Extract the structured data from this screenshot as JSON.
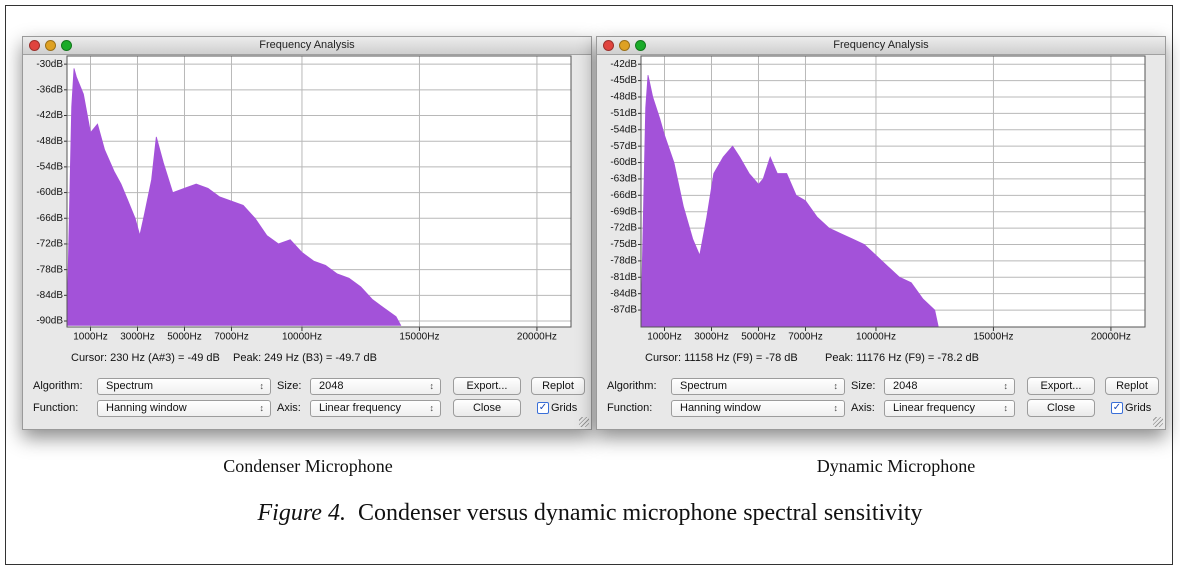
{
  "chart_data": [
    {
      "type": "area",
      "color": "#a352d9",
      "x": [
        0,
        200,
        300,
        400,
        700,
        1000,
        1300,
        1600,
        2000,
        2300,
        2600,
        2900,
        3100,
        3300,
        3600,
        3800,
        4100,
        4500,
        5000,
        5500,
        6000,
        6500,
        7000,
        7500,
        8000,
        8500,
        9000,
        9500,
        10000,
        10500,
        11000,
        11500,
        12000,
        12500,
        13000,
        13500,
        14000,
        14200
      ],
      "values": [
        -91,
        -40,
        -31,
        -33,
        -37,
        -46,
        -44,
        -50,
        -55,
        -58,
        -62,
        -66,
        -70,
        -65,
        -57,
        -47,
        -53,
        -60,
        -59,
        -58,
        -59,
        -61,
        -62,
        -63,
        -66,
        -70,
        -72,
        -71,
        -74,
        -76,
        -77,
        -79,
        -80,
        -82,
        -85,
        -87,
        -89,
        -91
      ],
      "xlim": [
        0,
        21450
      ],
      "ylim": [
        -91.4,
        -28.1
      ],
      "xticks": [
        {
          "value": 1000,
          "label": "1000Hz"
        },
        {
          "value": 3000,
          "label": "3000Hz"
        },
        {
          "value": 5000,
          "label": "5000Hz"
        },
        {
          "value": 7000,
          "label": "7000Hz"
        },
        {
          "value": 10000,
          "label": "10000Hz"
        },
        {
          "value": 15000,
          "label": "15000Hz"
        },
        {
          "value": 20000,
          "label": "20000Hz"
        }
      ],
      "yticks": [
        {
          "value": -30,
          "label": "-30dB"
        },
        {
          "value": -36,
          "label": "-36dB"
        },
        {
          "value": -42,
          "label": "-42dB"
        },
        {
          "value": -48,
          "label": "-48dB"
        },
        {
          "value": -54,
          "label": "-54dB"
        },
        {
          "value": -60,
          "label": "-60dB"
        },
        {
          "value": -66,
          "label": "-66dB"
        },
        {
          "value": -72,
          "label": "-72dB"
        },
        {
          "value": -78,
          "label": "-78dB"
        },
        {
          "value": -84,
          "label": "-84dB"
        },
        {
          "value": -90,
          "label": "-90dB"
        }
      ],
      "grid": true
    },
    {
      "type": "area",
      "color": "#a352d9",
      "x": [
        0,
        200,
        300,
        500,
        800,
        1000,
        1400,
        1800,
        2200,
        2500,
        2800,
        3100,
        3500,
        3900,
        4200,
        4600,
        5000,
        5200,
        5500,
        5800,
        6200,
        6600,
        7000,
        7500,
        8000,
        8500,
        9000,
        9500,
        10000,
        10500,
        11000,
        11500,
        12000,
        12500,
        12650
      ],
      "values": [
        -90,
        -50,
        -44,
        -48,
        -52,
        -55,
        -60,
        -68,
        -74,
        -77,
        -70,
        -62,
        -59,
        -57,
        -59,
        -62,
        -64,
        -63,
        -59,
        -62,
        -62,
        -66,
        -67,
        -70,
        -72,
        -73,
        -74,
        -75,
        -77,
        -79,
        -81,
        -82,
        -85,
        -87,
        -90
      ],
      "xlim": [
        0,
        21450
      ],
      "ylim": [
        -90.1,
        -40.5
      ],
      "xticks": [
        {
          "value": 1000,
          "label": "1000Hz"
        },
        {
          "value": 3000,
          "label": "3000Hz"
        },
        {
          "value": 5000,
          "label": "5000Hz"
        },
        {
          "value": 7000,
          "label": "7000Hz"
        },
        {
          "value": 10000,
          "label": "10000Hz"
        },
        {
          "value": 15000,
          "label": "15000Hz"
        },
        {
          "value": 20000,
          "label": "20000Hz"
        }
      ],
      "yticks": [
        {
          "value": -42,
          "label": "-42dB"
        },
        {
          "value": -45,
          "label": "-45dB"
        },
        {
          "value": -48,
          "label": "-48dB"
        },
        {
          "value": -51,
          "label": "-51dB"
        },
        {
          "value": -54,
          "label": "-54dB"
        },
        {
          "value": -57,
          "label": "-57dB"
        },
        {
          "value": -60,
          "label": "-60dB"
        },
        {
          "value": -63,
          "label": "-63dB"
        },
        {
          "value": -66,
          "label": "-66dB"
        },
        {
          "value": -69,
          "label": "-69dB"
        },
        {
          "value": -72,
          "label": "-72dB"
        },
        {
          "value": -75,
          "label": "-75dB"
        },
        {
          "value": -78,
          "label": "-78dB"
        },
        {
          "value": -81,
          "label": "-81dB"
        },
        {
          "value": -84,
          "label": "-84dB"
        },
        {
          "value": -87,
          "label": "-87dB"
        }
      ],
      "grid": true
    }
  ],
  "windows": [
    {
      "title": "Frequency Analysis",
      "cursor": "Cursor: 230 Hz (A#3) = -49 dB",
      "peak": "Peak: 249 Hz (B3) = -49.7 dB",
      "algorithm_label": "Algorithm:",
      "algorithm": "Spectrum",
      "size_label": "Size:",
      "size": "2048",
      "export": "Export...",
      "replot": "Replot",
      "function_label": "Function:",
      "function": "Hanning window",
      "axis_label": "Axis:",
      "axis": "Linear frequency",
      "close": "Close",
      "grids": "Grids"
    },
    {
      "title": "Frequency Analysis",
      "cursor": "Cursor: 11158 Hz (F9) = -78 dB",
      "peak": "Peak: 11176 Hz (F9) = -78.2 dB",
      "algorithm_label": "Algorithm:",
      "algorithm": "Spectrum",
      "size_label": "Size:",
      "size": "2048",
      "export": "Export...",
      "replot": "Replot",
      "function_label": "Function:",
      "function": "Hanning window",
      "axis_label": "Axis:",
      "axis": "Linear frequency",
      "close": "Close",
      "grids": "Grids"
    }
  ],
  "captions": [
    "Condenser Microphone",
    "Dynamic Microphone"
  ],
  "figure_caption": {
    "label": "Figure 4.",
    "text": "Condenser versus dynamic microphone spectral sensitivity"
  }
}
